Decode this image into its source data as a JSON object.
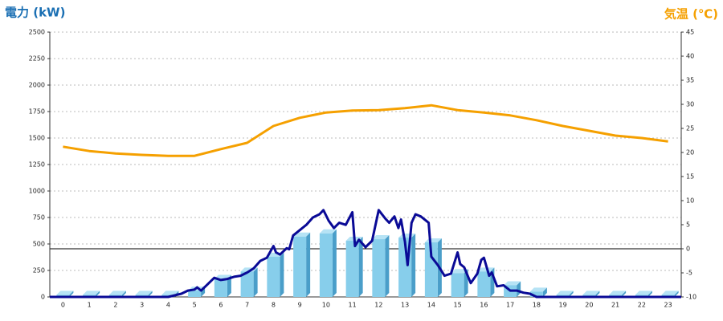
{
  "chart_data": {
    "type": "bar",
    "ylabel": "電力 (kW)",
    "y2label": "気温 (℃)",
    "categories": [
      "0",
      "1",
      "2",
      "3",
      "4",
      "5",
      "6",
      "7",
      "8",
      "9",
      "10",
      "11",
      "12",
      "13",
      "14",
      "15",
      "16",
      "17",
      "18",
      "19",
      "20",
      "21",
      "22",
      "23"
    ],
    "ylim": [
      0,
      2500
    ],
    "yticks": [
      0,
      250,
      500,
      750,
      1000,
      1250,
      1500,
      1750,
      2000,
      2250,
      2500
    ],
    "y2lim": [
      -10,
      45
    ],
    "y2ticks": [
      -10,
      -5,
      0,
      5,
      10,
      15,
      20,
      25,
      30,
      35,
      40,
      45
    ],
    "grid": true,
    "series": [
      {
        "type": "bar",
        "color": "#87ceeb",
        "values": [
          20,
          20,
          20,
          20,
          20,
          60,
          170,
          240,
          380,
          570,
          600,
          530,
          545,
          560,
          515,
          225,
          240,
          110,
          50,
          20,
          20,
          20,
          20,
          20
        ]
      },
      {
        "type": "line",
        "color": "#0a0a96",
        "x": [
          -0.5,
          4,
          4.5,
          4.75,
          5,
          5.1,
          5.25,
          5.5,
          5.75,
          6,
          6.25,
          6.5,
          6.75,
          7,
          7.25,
          7.5,
          7.75,
          8,
          8.1,
          8.25,
          8.5,
          8.6,
          8.75,
          9,
          9.25,
          9.5,
          9.75,
          9.9,
          10.1,
          10.3,
          10.5,
          10.75,
          11,
          11.1,
          11.25,
          11.5,
          11.75,
          12,
          12.25,
          12.4,
          12.6,
          12.75,
          12.85,
          13,
          13.1,
          13.25,
          13.4,
          13.6,
          13.9,
          14,
          14.25,
          14.5,
          14.75,
          15,
          15.1,
          15.25,
          15.5,
          15.75,
          15.9,
          16,
          16.2,
          16.3,
          16.5,
          16.75,
          17,
          17.25,
          17.5,
          17.75,
          18,
          23.5
        ],
        "values": [
          0,
          0,
          30,
          60,
          70,
          90,
          60,
          120,
          180,
          160,
          170,
          190,
          200,
          230,
          270,
          340,
          370,
          480,
          420,
          400,
          460,
          450,
          580,
          630,
          680,
          750,
          780,
          820,
          720,
          650,
          700,
          680,
          800,
          480,
          540,
          470,
          530,
          820,
          740,
          700,
          760,
          650,
          730,
          520,
          300,
          700,
          780,
          760,
          700,
          380,
          300,
          200,
          220,
          420,
          310,
          280,
          130,
          220,
          350,
          370,
          200,
          230,
          100,
          110,
          60,
          60,
          40,
          30,
          0,
          0
        ]
      },
      {
        "type": "line",
        "axis": "y2",
        "color": "#f5a000",
        "values": [
          21.2,
          20.3,
          19.8,
          19.5,
          19.3,
          19.3,
          20.7,
          22,
          25.5,
          27.2,
          28.3,
          28.7,
          28.8,
          29.2,
          29.8,
          28.8,
          28.3,
          27.7,
          26.7,
          25.5,
          24.5,
          23.5,
          23,
          22.3
        ]
      }
    ]
  }
}
